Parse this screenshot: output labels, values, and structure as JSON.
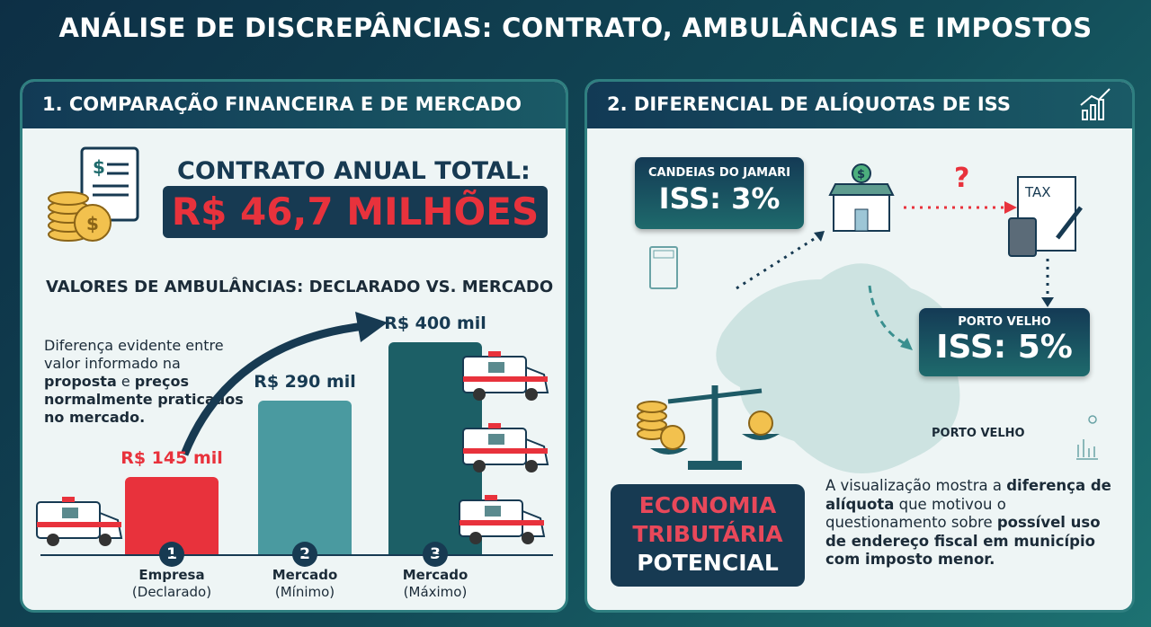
{
  "title": "ANÁLISE DE DISCREPÂNCIAS: CONTRATO, AMBULÂNCIAS E IMPOSTOS",
  "left": {
    "header": "1. COMPARAÇÃO FINANCEIRA E DE MERCADO",
    "contract_label": "CONTRATO ANUAL TOTAL:",
    "contract_value": "R$ 46,7 MILHÕES",
    "chart_title": "VALORES DE AMBULÂNCIAS: DECLARADO VS. MERCADO",
    "note": {
      "p1": "Diferença evidente entre valor informado na ",
      "b1": "proposta",
      "p2": " e ",
      "b2": "preços normalmente praticados no mercado."
    }
  },
  "chart_data": {
    "type": "bar",
    "categories": [
      "Empresa (Declarado)",
      "Mercado (Mínimo)",
      "Mercado (Máximo)"
    ],
    "numbers": [
      "1",
      "2",
      "3"
    ],
    "cat_main": [
      "Empresa",
      "Mercado",
      "Mercado"
    ],
    "cat_sub": [
      "(Declarado)",
      "(Mínimo)",
      "(Máximo)"
    ],
    "values": [
      145,
      290,
      400
    ],
    "unit": "mil R$",
    "data_labels": [
      "R$ 145 mil",
      "R$ 290 mil",
      "R$ 400 mil"
    ],
    "colors": [
      "#e8323c",
      "#4a9aa0",
      "#1c5f66"
    ],
    "label_colors": [
      "#e8323c",
      "#173a52",
      "#173a52"
    ]
  },
  "right": {
    "header": "2. DIFERENCIAL DE ALÍQUOTAS DE ISS",
    "city1": "CANDEIAS DO JAMARI",
    "iss1": "ISS: 3%",
    "city2": "PORTO VELHO",
    "iss2": "ISS: 5%",
    "question": "?",
    "tax": "TAX",
    "map_label": "PORTO VELHO",
    "economia": [
      "ECONOMIA",
      "TRIBUTÁRIA",
      "POTENCIAL"
    ],
    "para": {
      "p1": "A visualização mostra a ",
      "b1": "diferença de alíquota",
      "p2": " que motivou o questionamento sobre ",
      "b2": "possível uso de endereço fiscal em município com imposto menor."
    }
  },
  "colors": {
    "navy": "#173a52",
    "red": "#e8323c",
    "teal": "#1e6a6c"
  }
}
